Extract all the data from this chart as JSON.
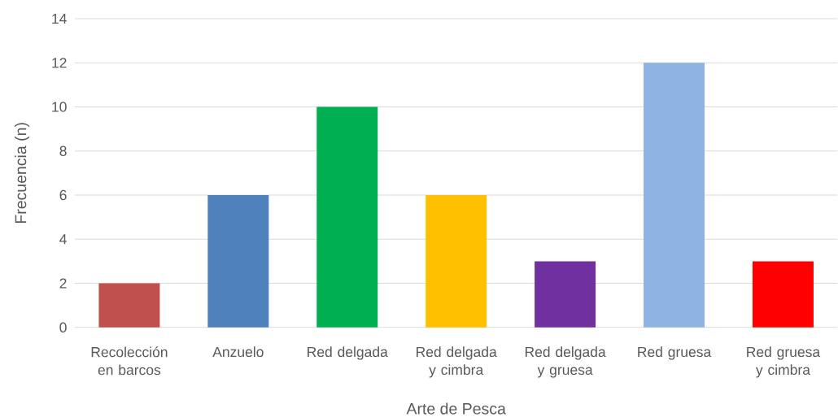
{
  "chart_data": {
    "type": "bar",
    "xlabel": "Arte de Pesca",
    "ylabel": "Frecuencia (n)",
    "categories": [
      "Recolección en barcos",
      "Anzuelo",
      "Red delgada",
      "Red delgada y cimbra",
      "Red delgada y gruesa",
      "Red gruesa",
      "Red gruesa y cimbra"
    ],
    "values": [
      2,
      6,
      10,
      6,
      3,
      12,
      3
    ],
    "colors": [
      "#c0504d",
      "#4f81bd",
      "#00b050",
      "#ffc000",
      "#7030a0",
      "#8eb4e3",
      "#ff0000"
    ],
    "ylim": [
      0,
      14
    ],
    "yticks": [
      0,
      2,
      4,
      6,
      8,
      10,
      12,
      14
    ],
    "grid": "y"
  }
}
